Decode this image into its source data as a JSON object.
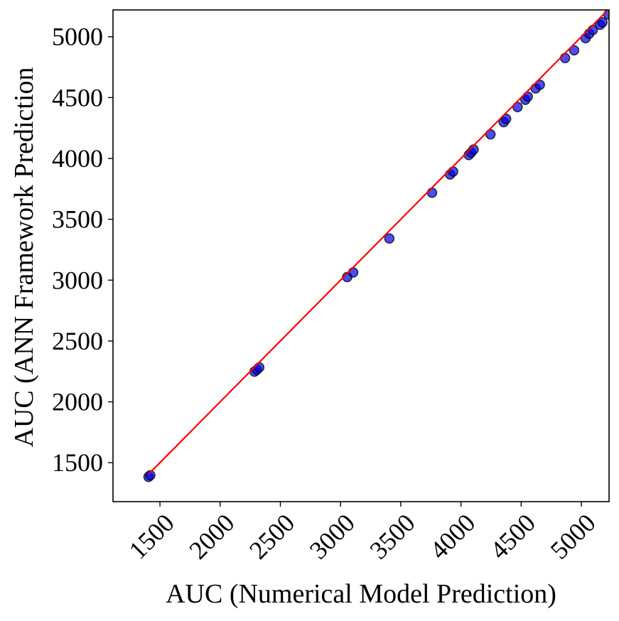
{
  "chart_data": {
    "type": "scatter",
    "title": "",
    "xlabel": "AUC (Numerical Model Prediction)",
    "ylabel": "AUC (ANN Framework Prediction",
    "xlim": [
      1110,
      5230
    ],
    "ylim": [
      1180,
      5220
    ],
    "xticks": [
      1500,
      2000,
      2500,
      3000,
      3500,
      4000,
      4500,
      5000
    ],
    "yticks": [
      1500,
      2000,
      2500,
      3000,
      3500,
      4000,
      4500,
      5000
    ],
    "grid": false,
    "legend": "none",
    "series": [
      {
        "kind": "points",
        "color": "#0000ee",
        "edge_color": "#000000",
        "points": [
          [
            1405,
            1383
          ],
          [
            1420,
            1397
          ],
          [
            2285,
            2248
          ],
          [
            2305,
            2263
          ],
          [
            2325,
            2283
          ],
          [
            3055,
            3025
          ],
          [
            3105,
            3063
          ],
          [
            3405,
            3342
          ],
          [
            3760,
            3718
          ],
          [
            3910,
            3868
          ],
          [
            3935,
            3892
          ],
          [
            4065,
            4028
          ],
          [
            4085,
            4048
          ],
          [
            4105,
            4073
          ],
          [
            4245,
            4198
          ],
          [
            4355,
            4298
          ],
          [
            4375,
            4325
          ],
          [
            4470,
            4422
          ],
          [
            4535,
            4482
          ],
          [
            4555,
            4508
          ],
          [
            4620,
            4575
          ],
          [
            4655,
            4605
          ],
          [
            4865,
            4825
          ],
          [
            4940,
            4888
          ],
          [
            5035,
            4988
          ],
          [
            5065,
            5025
          ],
          [
            5095,
            5055
          ],
          [
            5155,
            5098
          ],
          [
            5175,
            5118
          ],
          [
            5225,
            5182
          ]
        ]
      },
      {
        "kind": "line",
        "color": "#ff0000",
        "x": [
          1405,
          5225
        ],
        "y": [
          1405,
          5225
        ]
      }
    ]
  }
}
